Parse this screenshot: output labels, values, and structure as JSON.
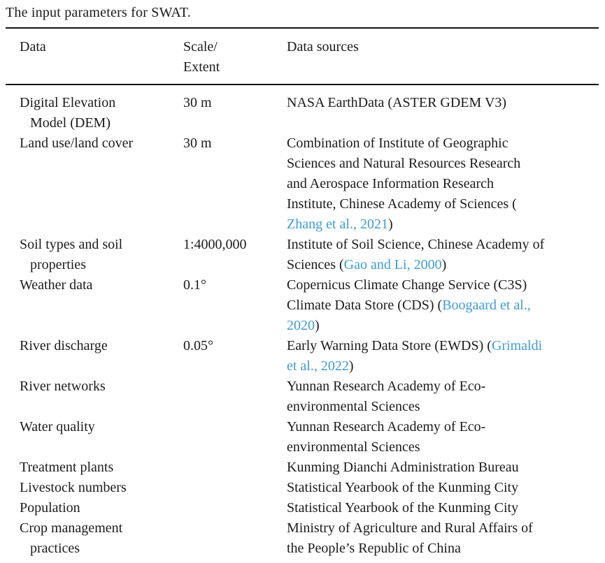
{
  "title": "The input parameters for SWAT.",
  "colors": {
    "text": "#1b1b1b",
    "link": "#3e9bd6",
    "rule": "#111111",
    "background": "#ffffff"
  },
  "table": {
    "headers": {
      "data": "Data",
      "scale": "Scale/\nExtent",
      "sources": "Data sources"
    },
    "rows": [
      {
        "data": "Digital Elevation\n   Model (DEM)",
        "scale": "30 m",
        "source": [
          {
            "text": "NASA EarthData (ASTER GDEM V3)"
          }
        ]
      },
      {
        "data": "Land use/land cover",
        "scale": "30 m",
        "source": [
          {
            "text": "Combination of Institute of Geographic\nSciences and Natural Resources Research\nand Aerospace Information Research\nInstitute, Chinese Academy of Sciences (\n"
          },
          {
            "text": "Zhang et al., 2021",
            "link": true
          },
          {
            "text": ")"
          }
        ]
      },
      {
        "data": "Soil types and soil\n   properties",
        "scale": "1:4000,000",
        "source": [
          {
            "text": "Institute of Soil Science, Chinese Academy of\nSciences ("
          },
          {
            "text": "Gao and Li, 2000",
            "link": true
          },
          {
            "text": ")"
          }
        ]
      },
      {
        "data": "Weather data",
        "scale": "0.1°",
        "source": [
          {
            "text": "Copernicus Climate Change Service (C3S)\nClimate Data Store (CDS) ("
          },
          {
            "text": "Boogaard et al.,\n2020",
            "link": true
          },
          {
            "text": ")"
          }
        ]
      },
      {
        "data": "River discharge",
        "scale": "0.05°",
        "source": [
          {
            "text": "Early Warning Data Store (EWDS) ("
          },
          {
            "text": "Grimaldi\net al., 2022",
            "link": true
          },
          {
            "text": ")"
          }
        ]
      },
      {
        "data": "River networks",
        "scale": "",
        "source": [
          {
            "text": "Yunnan Research Academy of Eco-\nenvironmental Sciences"
          }
        ]
      },
      {
        "data": "Water quality",
        "scale": "",
        "source": [
          {
            "text": "Yunnan Research Academy of Eco-\nenvironmental Sciences"
          }
        ]
      },
      {
        "data": "Treatment plants",
        "scale": "",
        "source": [
          {
            "text": "Kunming Dianchi Administration Bureau"
          }
        ]
      },
      {
        "data": "Livestock numbers",
        "scale": "",
        "source": [
          {
            "text": "Statistical Yearbook of the Kunming City"
          }
        ]
      },
      {
        "data": "Population",
        "scale": "",
        "source": [
          {
            "text": "Statistical Yearbook of the Kunming City"
          }
        ]
      },
      {
        "data": "Crop management\n   practices",
        "scale": "",
        "source": [
          {
            "text": "Ministry of Agriculture and Rural Affairs of\nthe People’s Republic of China"
          }
        ]
      }
    ]
  }
}
